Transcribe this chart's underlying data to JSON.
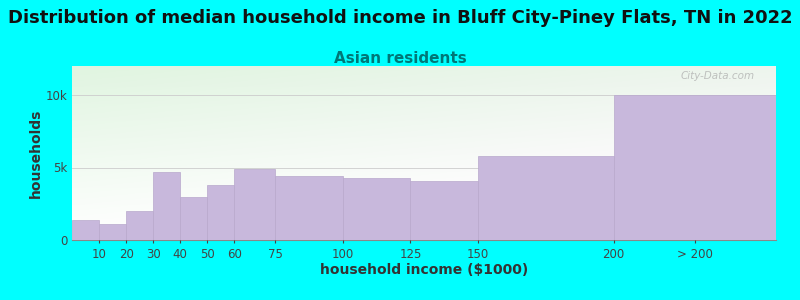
{
  "title": "Distribution of median household income in Bluff City-Piney Flats, TN in 2022",
  "subtitle": "Asian residents",
  "xlabel": "household income ($1000)",
  "ylabel": "households",
  "background_outer": "#00FFFF",
  "bar_color": "#c8b8dc",
  "bar_edge_color": "#b8a8cc",
  "categories": [
    "10",
    "20",
    "30",
    "40",
    "50",
    "60",
    "75",
    "100",
    "125",
    "150",
    "200",
    "> 200"
  ],
  "left_edges": [
    0,
    10,
    20,
    30,
    40,
    50,
    60,
    75,
    100,
    125,
    150,
    200
  ],
  "right_edges": [
    10,
    20,
    30,
    40,
    50,
    60,
    75,
    100,
    125,
    150,
    200,
    260
  ],
  "values": [
    1400,
    1100,
    2000,
    4700,
    3000,
    3800,
    4900,
    4400,
    4300,
    4100,
    5800,
    10000
  ],
  "ylim": [
    0,
    12000
  ],
  "ytick_vals": [
    0,
    5000,
    10000
  ],
  "ytick_labels": [
    "0",
    "5k",
    "10k"
  ],
  "xlim": [
    0,
    260
  ],
  "title_fontsize": 13,
  "subtitle_fontsize": 11,
  "axis_label_fontsize": 10,
  "tick_fontsize": 8.5,
  "watermark": "City-Data.com",
  "title_color": "#111111",
  "subtitle_color": "#007777",
  "axis_label_color": "#333333",
  "tick_color": "#444444",
  "grid_color": "#cccccc",
  "bg_left_color": "#d8f0d8",
  "bg_right_color": "#f8f8f8"
}
